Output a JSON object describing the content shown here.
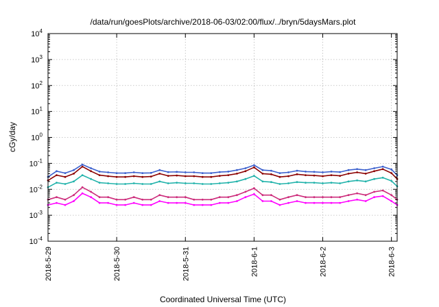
{
  "chart_data": {
    "type": "line",
    "title": "/data/run/goesPlots/archive/2018-06-03/02:00/flux/../bryn/5daysMars.plot",
    "xlabel": "Coordinated Universal Time (UTC)",
    "ylabel": "cGy/day",
    "y_scale": "log",
    "ylim": [
      0.0001,
      10000
    ],
    "y_ticks": [
      {
        "base": "10",
        "exp": "-4"
      },
      {
        "base": "10",
        "exp": "-3"
      },
      {
        "base": "10",
        "exp": "-2"
      },
      {
        "base": "10",
        "exp": "-1"
      },
      {
        "base": "10",
        "exp": "0"
      },
      {
        "base": "10",
        "exp": "1"
      },
      {
        "base": "10",
        "exp": "2"
      },
      {
        "base": "10",
        "exp": "3"
      },
      {
        "base": "10",
        "exp": "4"
      }
    ],
    "x_ticks": [
      "2018-5-29",
      "2018-5-30",
      "2018-5-31",
      "2018-6-1",
      "2018-6-2",
      "2018-6-3"
    ],
    "xlim": [
      "2018-05-29 00:00",
      "2018-06-03 02:00"
    ],
    "grid": true,
    "legend": "none",
    "x": [
      "2018-05-29 00:00",
      "2018-05-29 03:00",
      "2018-05-29 06:00",
      "2018-05-29 09:00",
      "2018-05-29 12:00",
      "2018-05-29 15:00",
      "2018-05-29 18:00",
      "2018-05-29 21:00",
      "2018-05-30 00:00",
      "2018-05-30 03:00",
      "2018-05-30 06:00",
      "2018-05-30 09:00",
      "2018-05-30 12:00",
      "2018-05-30 15:00",
      "2018-05-30 18:00",
      "2018-05-30 21:00",
      "2018-05-31 00:00",
      "2018-05-31 03:00",
      "2018-05-31 06:00",
      "2018-05-31 09:00",
      "2018-05-31 12:00",
      "2018-05-31 15:00",
      "2018-05-31 18:00",
      "2018-05-31 21:00",
      "2018-06-01 00:00",
      "2018-06-01 03:00",
      "2018-06-01 06:00",
      "2018-06-01 09:00",
      "2018-06-01 12:00",
      "2018-06-01 15:00",
      "2018-06-01 18:00",
      "2018-06-01 21:00",
      "2018-06-02 00:00",
      "2018-06-02 03:00",
      "2018-06-02 06:00",
      "2018-06-02 09:00",
      "2018-06-02 12:00",
      "2018-06-02 15:00",
      "2018-06-02 18:00",
      "2018-06-02 21:00",
      "2018-06-03 00:00",
      "2018-06-03 02:00"
    ],
    "series": [
      {
        "color": "#8b0000",
        "values": [
          0.022,
          0.035,
          0.03,
          0.04,
          0.075,
          0.05,
          0.035,
          0.032,
          0.03,
          0.03,
          0.032,
          0.03,
          0.031,
          0.04,
          0.033,
          0.034,
          0.032,
          0.032,
          0.03,
          0.03,
          0.033,
          0.035,
          0.04,
          0.05,
          0.07,
          0.04,
          0.038,
          0.03,
          0.032,
          0.038,
          0.035,
          0.034,
          0.032,
          0.035,
          0.033,
          0.04,
          0.045,
          0.04,
          0.05,
          0.06,
          0.042,
          0.025
        ]
      },
      {
        "color": "#cc2a7a",
        "values": [
          0.004,
          0.005,
          0.004,
          0.006,
          0.012,
          0.008,
          0.005,
          0.005,
          0.004,
          0.004,
          0.005,
          0.004,
          0.004,
          0.006,
          0.005,
          0.005,
          0.005,
          0.004,
          0.004,
          0.004,
          0.005,
          0.005,
          0.006,
          0.008,
          0.011,
          0.006,
          0.006,
          0.004,
          0.005,
          0.006,
          0.005,
          0.005,
          0.005,
          0.005,
          0.005,
          0.006,
          0.007,
          0.006,
          0.008,
          0.009,
          0.006,
          0.004
        ]
      },
      {
        "color": "#ff00ff",
        "values": [
          0.0025,
          0.003,
          0.0025,
          0.0035,
          0.007,
          0.005,
          0.003,
          0.003,
          0.0025,
          0.0025,
          0.003,
          0.0025,
          0.0025,
          0.0035,
          0.003,
          0.003,
          0.003,
          0.0025,
          0.0025,
          0.0025,
          0.003,
          0.003,
          0.0035,
          0.005,
          0.0065,
          0.0035,
          0.0035,
          0.0025,
          0.003,
          0.0035,
          0.003,
          0.003,
          0.003,
          0.003,
          0.003,
          0.0035,
          0.004,
          0.0035,
          0.005,
          0.0055,
          0.0035,
          0.0025
        ]
      },
      {
        "color": "#20b2aa",
        "values": [
          0.012,
          0.018,
          0.016,
          0.02,
          0.035,
          0.025,
          0.018,
          0.017,
          0.016,
          0.016,
          0.017,
          0.016,
          0.016,
          0.02,
          0.017,
          0.018,
          0.017,
          0.017,
          0.016,
          0.016,
          0.017,
          0.018,
          0.02,
          0.025,
          0.033,
          0.02,
          0.019,
          0.016,
          0.017,
          0.019,
          0.018,
          0.018,
          0.017,
          0.018,
          0.017,
          0.02,
          0.022,
          0.02,
          0.025,
          0.028,
          0.021,
          0.013
        ]
      },
      {
        "color": "#3a5fcd",
        "values": [
          0.03,
          0.05,
          0.042,
          0.055,
          0.09,
          0.065,
          0.048,
          0.045,
          0.042,
          0.042,
          0.045,
          0.042,
          0.043,
          0.055,
          0.046,
          0.047,
          0.045,
          0.045,
          0.042,
          0.042,
          0.046,
          0.048,
          0.055,
          0.065,
          0.085,
          0.055,
          0.052,
          0.042,
          0.045,
          0.052,
          0.048,
          0.047,
          0.045,
          0.048,
          0.046,
          0.055,
          0.06,
          0.055,
          0.065,
          0.075,
          0.058,
          0.035
        ]
      }
    ]
  }
}
